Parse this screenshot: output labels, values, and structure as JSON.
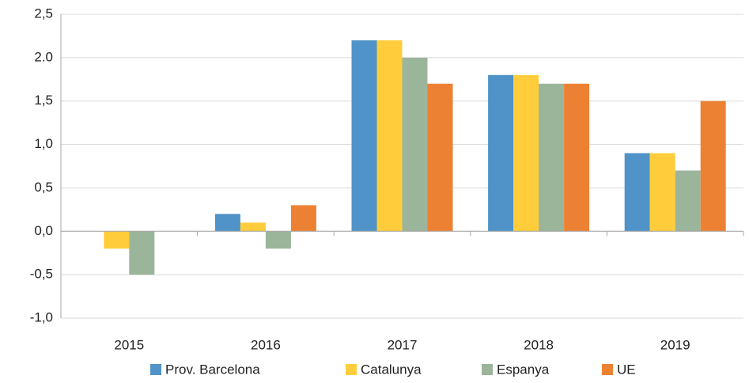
{
  "chart_data": {
    "type": "bar",
    "categories": [
      "2015",
      "2016",
      "2017",
      "2018",
      "2019"
    ],
    "series": [
      {
        "name": "Prov. Barcelona",
        "color": "#4f93c8",
        "values": [
          0.0,
          0.2,
          2.2,
          1.8,
          0.9
        ]
      },
      {
        "name": "Catalunya",
        "color": "#ffcd3c",
        "values": [
          -0.2,
          0.1,
          2.2,
          1.8,
          0.9
        ]
      },
      {
        "name": "Espanya",
        "color": "#9bb59a",
        "values": [
          -0.5,
          -0.2,
          2.0,
          1.7,
          0.7
        ]
      },
      {
        "name": "UE",
        "color": "#ed8133",
        "values": [
          0.0,
          0.3,
          1.7,
          1.7,
          1.5
        ]
      }
    ],
    "ylim": [
      -1.0,
      2.5
    ],
    "yticks": [
      {
        "value": -1.0,
        "label": "-1,0"
      },
      {
        "value": -0.5,
        "label": "-0,5"
      },
      {
        "value": 0.0,
        "label": "0,0"
      },
      {
        "value": 0.5,
        "label": "0,5"
      },
      {
        "value": 1.0,
        "label": "1,0"
      },
      {
        "value": 1.5,
        "label": "1,5"
      },
      {
        "value": 2.0,
        "label": "2.0"
      },
      {
        "value": 2.5,
        "label": "2,5"
      }
    ],
    "grid": true,
    "legend": "bottom"
  }
}
